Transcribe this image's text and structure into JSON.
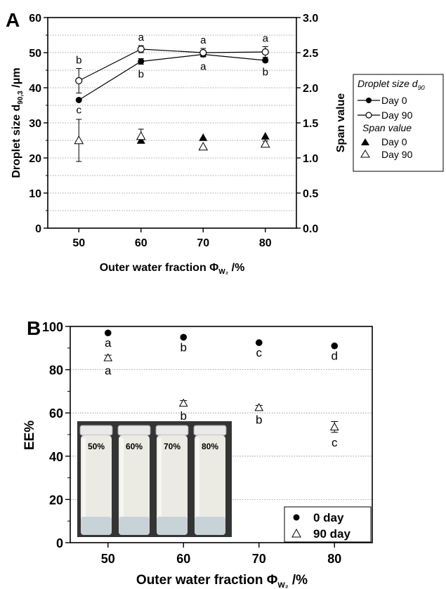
{
  "chart_data": [
    {
      "panel": "A",
      "type": "line+scatter",
      "x": [
        50,
        60,
        70,
        80
      ],
      "xlabel": "Outer water fraction Φ",
      "xlabel_sub": "W₂",
      "xlabel_suffix": " /%",
      "xlim": [
        45,
        85
      ],
      "ylabel": "Droplet size d",
      "ylabel_sub": "90,3",
      "ylabel_suffix": " /μm",
      "ylim": [
        0,
        60
      ],
      "y2label": "Span value",
      "y2lim": [
        0.0,
        3.0
      ],
      "x_ticks": [
        "50",
        "60",
        "70",
        "80"
      ],
      "y_ticks": [
        "0",
        "10",
        "20",
        "30",
        "40",
        "50",
        "60"
      ],
      "y2_ticks": [
        "0.0",
        "0.5",
        "1.0",
        "1.5",
        "2.0",
        "2.5",
        "3.0"
      ],
      "grid": "horizontal dotted",
      "series": [
        {
          "name": "Day 0",
          "group": "droplet",
          "axis": "left",
          "marker": "filled-circle",
          "line": true,
          "values": [
            36.5,
            47.5,
            49.5,
            47.8
          ],
          "error": [
            0,
            0.8,
            0.6,
            0.5
          ],
          "letters": [
            "c",
            "b",
            "a",
            "b"
          ]
        },
        {
          "name": "Day 90",
          "group": "droplet",
          "axis": "left",
          "marker": "open-circle",
          "line": true,
          "values": [
            42,
            51,
            50,
            50.2
          ],
          "error": [
            3.5,
            1.0,
            1.2,
            1.5
          ],
          "letters": [
            "b",
            "a",
            "a",
            "a"
          ]
        },
        {
          "name": "Day 0",
          "group": "span",
          "axis": "right",
          "marker": "filled-triangle",
          "line": false,
          "values": [
            1.25,
            1.25,
            1.29,
            1.31
          ],
          "error": [
            0,
            0.04,
            0,
            0
          ]
        },
        {
          "name": "Day 90",
          "group": "span",
          "axis": "right",
          "marker": "open-triangle",
          "line": false,
          "values": [
            1.25,
            1.31,
            1.16,
            1.2
          ],
          "error": [
            0.3,
            0.1,
            0,
            0.04
          ]
        }
      ],
      "legend": {
        "placement": "right",
        "group1_title": "Droplet size d",
        "group1_title_sub": "90",
        "group2_title": "Span value"
      }
    },
    {
      "panel": "B",
      "type": "scatter",
      "x": [
        50,
        60,
        70,
        80
      ],
      "xlabel": "Outer water fraction Φ",
      "xlabel_sub": "W₂",
      "xlabel_suffix": " /%",
      "xlim": [
        45,
        85
      ],
      "ylabel": "EE%",
      "ylim": [
        0,
        100
      ],
      "x_ticks": [
        "50",
        "60",
        "70",
        "80"
      ],
      "y_ticks": [
        "0",
        "20",
        "40",
        "60",
        "80",
        "100"
      ],
      "grid": "horizontal dotted",
      "series": [
        {
          "name": "0 day",
          "marker": "filled-circle",
          "values": [
            97,
            95,
            92.5,
            91
          ],
          "error": [
            0,
            0,
            0,
            0
          ],
          "letters": [
            "a",
            "b",
            "c",
            "d"
          ]
        },
        {
          "name": "90 day",
          "marker": "open-triangle",
          "values": [
            85.5,
            64.5,
            62.5,
            53.5
          ],
          "error": [
            1.2,
            1.2,
            1.0,
            2.5
          ],
          "letters": [
            "a",
            "b",
            "b",
            "c"
          ]
        }
      ],
      "legend": {
        "placement": "bottom-right"
      },
      "inset": {
        "content": "photo of four emulsion vials",
        "vial_labels": [
          "50%",
          "60%",
          "70%",
          "80%"
        ]
      }
    }
  ]
}
